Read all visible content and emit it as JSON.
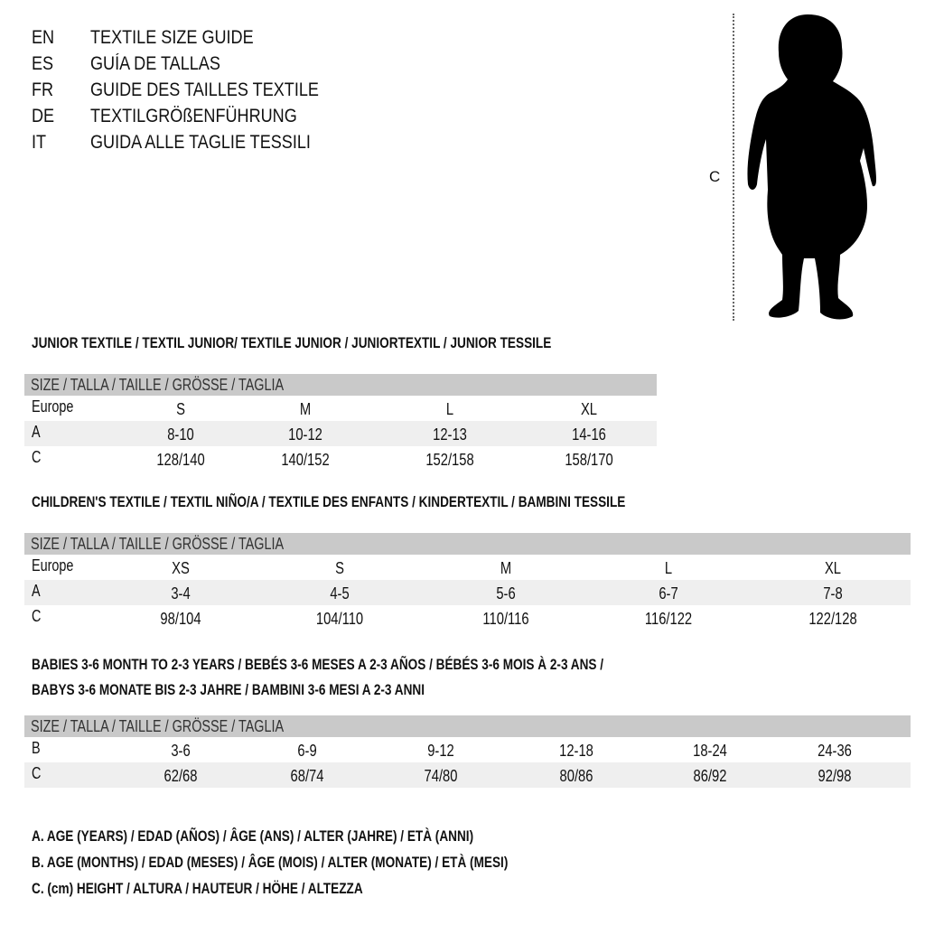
{
  "header": {
    "languages": [
      {
        "code": "EN",
        "text": "TEXTILE SIZE GUIDE"
      },
      {
        "code": "ES",
        "text": "GUÍA DE TALLAS"
      },
      {
        "code": "FR",
        "text": "GUIDE DES TAILLES TEXTILE"
      },
      {
        "code": "DE",
        "text": "TEXTILGRÖßENFÜHRUNG"
      },
      {
        "code": "IT",
        "text": "GUIDA ALLE TAGLIE TESSILI"
      }
    ]
  },
  "figure": {
    "icon": "child-silhouette-icon",
    "height_label": "C"
  },
  "tables": [
    {
      "title_lines": [
        "JUNIOR TEXTILE / TEXTIL JUNIOR/ TEXTILE JUNIOR / JUNIORTEXTIL / JUNIOR TESSILE"
      ],
      "header": "SIZE / TALLA / TAILLE / GRÖSSE / TAGLIA",
      "rows": [
        {
          "label": "Europe",
          "cells": [
            "S",
            "M",
            "L",
            "XL"
          ]
        },
        {
          "label": "A",
          "cells": [
            "8-10",
            "10-12",
            "12-13",
            "14-16"
          ]
        },
        {
          "label": "C",
          "cells": [
            "128/140",
            "140/152",
            "152/158",
            "158/170"
          ]
        }
      ]
    },
    {
      "title_lines": [
        "CHILDREN'S TEXTILE / TEXTIL NIÑO/A / TEXTILE DES ENFANTS / KINDERTEXTIL / BAMBINI TESSILE"
      ],
      "header": "SIZE / TALLA / TAILLE / GRÖSSE / TAGLIA",
      "rows": [
        {
          "label": "Europe",
          "cells": [
            "XS",
            "S",
            "M",
            "L",
            "XL"
          ]
        },
        {
          "label": "A",
          "cells": [
            "3-4",
            "4-5",
            "5-6",
            "6-7",
            "7-8"
          ]
        },
        {
          "label": "C",
          "cells": [
            "98/104",
            "104/110",
            "110/116",
            "116/122",
            "122/128"
          ]
        }
      ]
    },
    {
      "title_lines": [
        "BABIES 3-6 MONTH TO 2-3 YEARS / BEBÉS 3-6 MESES A 2-3 AÑOS / BÉBÉS 3-6 MOIS À 2-3 ANS /",
        "BABYS 3-6 MONATE BIS 2-3 JAHRE / BAMBINI 3-6 MESI A 2-3 ANNI"
      ],
      "header": "SIZE / TALLA / TAILLE / GRÖSSE / TAGLIA",
      "rows": [
        {
          "label": "B",
          "cells": [
            "3-6",
            "6-9",
            "9-12",
            "12-18",
            "18-24",
            "24-36"
          ]
        },
        {
          "label": "C",
          "cells": [
            "62/68",
            "68/74",
            "74/80",
            "80/86",
            "86/92",
            "92/98"
          ]
        }
      ]
    }
  ],
  "legend": [
    "A. AGE (YEARS) / EDAD (AÑOS) / ÂGE (ANS) / ALTER (JAHRE) / ETÀ (ANNI)",
    "B. AGE (MONTHS) / EDAD (MESES) / ÂGE (MOIS) / ALTER (MONATE) / ETÀ (MESI)",
    "C. (cm) HEIGHT / ALTURA / HAUTEUR / HÖHE / ALTEZZA"
  ],
  "colors": {
    "header_bar": "#c9c9c9",
    "shaded_row": "#efefef"
  }
}
